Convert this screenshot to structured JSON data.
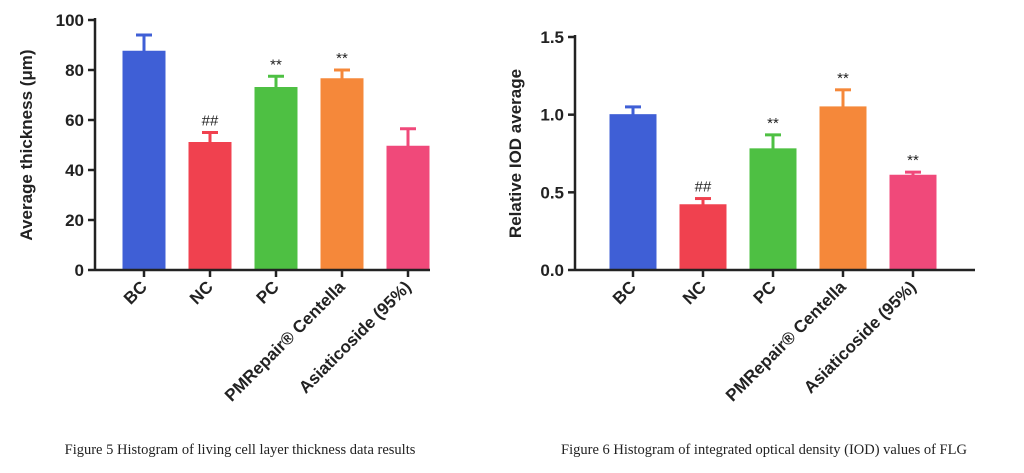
{
  "chart_data": [
    {
      "type": "bar",
      "categories": [
        "BC",
        "NC",
        "PC",
        "PMRepair® Centella",
        "Asiaticoside (95%)"
      ],
      "values": [
        87.5,
        51,
        73,
        76.5,
        49.5
      ],
      "errors": [
        6.5,
        4,
        4.5,
        3.5,
        7
      ],
      "annotations": [
        "",
        "##",
        "**",
        "**",
        ""
      ],
      "colors": [
        "#3f5fd6",
        "#f0414f",
        "#4ec043",
        "#f5883a",
        "#f0497a"
      ],
      "ylabel": "Average thickness (μm)",
      "ylim": [
        0,
        100
      ],
      "yticks": [
        0,
        20,
        40,
        60,
        80,
        100
      ],
      "ytick_labels": [
        "0",
        "20",
        "40",
        "60",
        "80",
        "100"
      ],
      "caption": "Figure 5 Histogram of living cell layer thickness data results"
    },
    {
      "type": "bar",
      "categories": [
        "BC",
        "NC",
        "PC",
        "PMRepair® Centella",
        "Asiaticoside (95%)"
      ],
      "values": [
        1.0,
        0.42,
        0.78,
        1.05,
        0.61
      ],
      "errors": [
        0.05,
        0.04,
        0.09,
        0.11,
        0.02
      ],
      "annotations": [
        "",
        "##",
        "**",
        "**",
        "**"
      ],
      "colors": [
        "#3f5fd6",
        "#f0414f",
        "#4ec043",
        "#f5883a",
        "#f0497a"
      ],
      "ylabel": "Relative IOD average",
      "ylim": [
        0,
        1.5
      ],
      "yticks": [
        0,
        0.5,
        1.0,
        1.5
      ],
      "ytick_labels": [
        "0.0",
        "0.5",
        "1.0",
        "1.5"
      ],
      "caption": "Figure 6 Histogram of integrated optical density (IOD) values of FLG"
    }
  ]
}
